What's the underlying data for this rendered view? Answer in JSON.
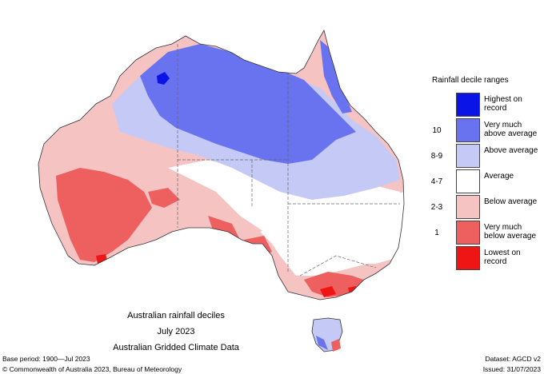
{
  "map": {
    "title_line1": "Australian rainfall deciles",
    "title_line2": "July 2023",
    "title_line3": "Australian Gridded Climate Data"
  },
  "legend": {
    "title": "Rainfall decile ranges",
    "items": [
      {
        "range": "",
        "label": "Highest on record",
        "color": "#0a14e6"
      },
      {
        "range": "10",
        "label": "Very much above average",
        "color": "#6a73ef"
      },
      {
        "range": "8-9",
        "label": "Above average",
        "color": "#c4c9f5"
      },
      {
        "range": "4-7",
        "label": "Average",
        "color": "#ffffff"
      },
      {
        "range": "2-3",
        "label": "Below average",
        "color": "#f6c3c3"
      },
      {
        "range": "1",
        "label": "Very much below average",
        "color": "#ee6060"
      },
      {
        "range": "",
        "label": "Lowest on record",
        "color": "#f01515"
      }
    ]
  },
  "footer": {
    "base_period": "Base period: 1900—Jul 2023",
    "dataset": "Dataset: AGCD v2",
    "copyright": "© Commonwealth of Australia 2023, Bureau of Meteorology",
    "issued": "Issued: 31/07/2023"
  }
}
